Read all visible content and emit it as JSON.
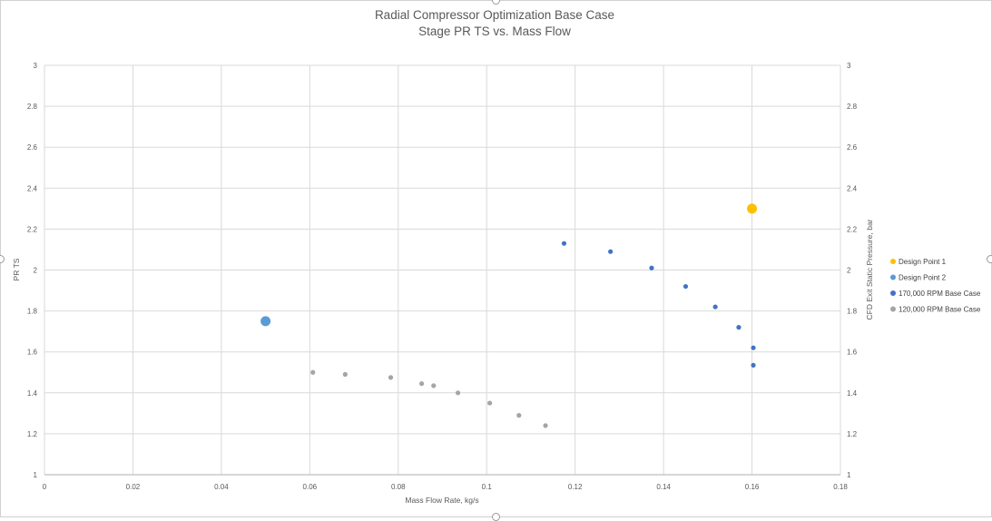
{
  "chart_data": {
    "type": "scatter",
    "title": "Radial Compressor Optimization Base Case",
    "subtitle": "Stage PR TS vs. Mass Flow",
    "xlabel": "Mass Flow Rate, kg/s",
    "ylabel": "PR TS",
    "y2label": "CFD Exit Static Pressure, bar",
    "xlim": [
      0,
      0.18
    ],
    "ylim": [
      1,
      3
    ],
    "y2lim": [
      1,
      3
    ],
    "x_ticks": [
      "0",
      "0.02",
      "0.04",
      "0.06",
      "0.08",
      "0.1",
      "0.12",
      "0.14",
      "0.16",
      "0.18"
    ],
    "y_ticks": [
      "1",
      "1.2",
      "1.4",
      "1.6",
      "1.8",
      "2",
      "2.2",
      "2.4",
      "2.6",
      "2.8",
      "3"
    ],
    "y2_ticks": [
      "1",
      "1.2",
      "1.4",
      "1.6",
      "1.8",
      "2",
      "2.2",
      "2.4",
      "2.6",
      "2.8",
      "3"
    ],
    "grid": true,
    "legend_position": "right",
    "series": [
      {
        "name": "Design Point 1",
        "color": "#FFC000",
        "marker": "large-circle",
        "points": [
          [
            0.16,
            2.3
          ]
        ]
      },
      {
        "name": "Design Point 2",
        "color": "#5B9BD5",
        "marker": "large-circle",
        "points": [
          [
            0.05,
            1.75
          ]
        ]
      },
      {
        "name": "170,000 RPM Base Case",
        "color": "#4472C4",
        "marker": "circle",
        "points": [
          [
            0.1175,
            2.13
          ],
          [
            0.128,
            2.09
          ],
          [
            0.1373,
            2.01
          ],
          [
            0.145,
            1.92
          ],
          [
            0.1517,
            1.82
          ],
          [
            0.157,
            1.72
          ],
          [
            0.1603,
            1.62
          ],
          [
            0.1603,
            1.535
          ]
        ]
      },
      {
        "name": "120,000 RPM Base Case",
        "color": "#A5A5A5",
        "marker": "circle",
        "points": [
          [
            0.0607,
            1.5
          ],
          [
            0.068,
            1.49
          ],
          [
            0.0783,
            1.475
          ],
          [
            0.0853,
            1.445
          ],
          [
            0.088,
            1.435
          ],
          [
            0.0935,
            1.4
          ],
          [
            0.1007,
            1.35
          ],
          [
            0.1073,
            1.29
          ],
          [
            0.1133,
            1.24
          ]
        ]
      }
    ]
  }
}
